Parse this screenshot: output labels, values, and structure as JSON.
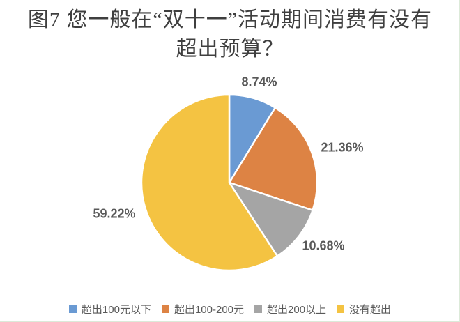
{
  "figure": {
    "title_line1": "图7  您一般在“双十一”活动期间消费有没有",
    "title_line2": "超出预算？"
  },
  "chart_data": {
    "type": "pie",
    "title": "图7 您一般在“双十一”活动期间消费有没有超出预算？",
    "start_angle_deg": 0,
    "direction": "clockwise",
    "legend_position": "bottom",
    "label_color": "#595959",
    "slice_border_color": "#FFFFFF",
    "slices": [
      {
        "label": "超出100元以下",
        "value": 8.74,
        "display": "8.74%",
        "color": "#6A9AD3"
      },
      {
        "label": "超出100-200元",
        "value": 21.36,
        "display": "21.36%",
        "color": "#DD8344"
      },
      {
        "label": "超出200以上",
        "value": 10.68,
        "display": "10.68%",
        "color": "#A5A5A5"
      },
      {
        "label": "没有超出",
        "value": 59.22,
        "display": "59.22%",
        "color": "#F4C342"
      }
    ]
  }
}
